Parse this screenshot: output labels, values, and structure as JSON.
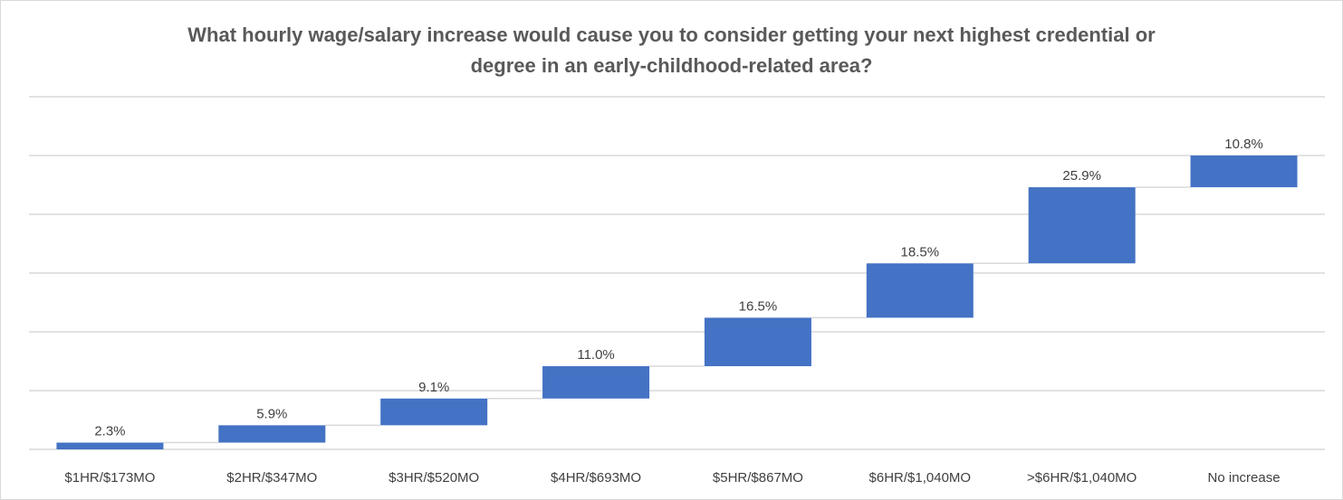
{
  "chart_data": {
    "type": "bar",
    "subtype": "waterfall",
    "title_lines": [
      "What hourly wage/salary increase would cause you to consider getting your next highest credential or",
      "degree in an early-childhood-related area?"
    ],
    "categories": [
      "$1HR/$173MO",
      "$2HR/$347MO",
      "$3HR/$520MO",
      "$4HR/$693MO",
      "$5HR/$867MO",
      "$6HR/$1,040MO",
      ">$6HR/$1,040MO",
      "No increase"
    ],
    "values": [
      2.3,
      5.9,
      9.1,
      11.0,
      16.5,
      18.5,
      25.9,
      10.8
    ],
    "data_labels": [
      "2.3%",
      "5.9%",
      "9.1%",
      "11.0%",
      "16.5%",
      "18.5%",
      "25.9%",
      "10.8%"
    ],
    "ylim": [
      0,
      100
    ],
    "gridlines": true,
    "legend": "none",
    "xlabel": "",
    "ylabel": "",
    "colors": {
      "bar": "#4472c4",
      "grid": "#d9d9d9",
      "connector": "#d9d9d9",
      "text": "#404040",
      "title": "#595959"
    }
  }
}
